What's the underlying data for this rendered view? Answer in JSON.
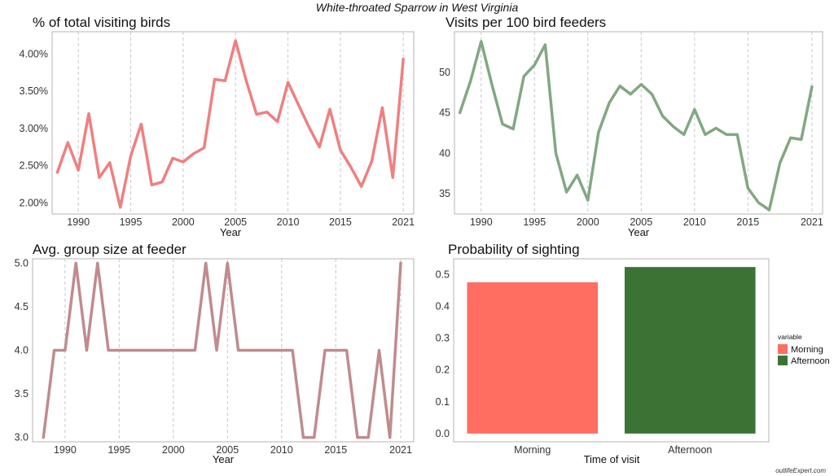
{
  "figure_title": "White-throated Sparrow in West Virginia",
  "credit": "outlifeExpert.com",
  "colors": {
    "panel1": "#EF8080",
    "panel2": "#82A882",
    "panel3": "#C08B8E",
    "morning": "#FF6E61",
    "afternoon": "#3B7334"
  },
  "chart_data": [
    {
      "type": "line",
      "title": "% of total visiting birds",
      "xlabel": "Year",
      "ylabel": "",
      "x": [
        1988,
        1989,
        1990,
        1991,
        1992,
        1993,
        1994,
        1995,
        1996,
        1997,
        1998,
        1999,
        2000,
        2001,
        2002,
        2003,
        2004,
        2005,
        2006,
        2007,
        2008,
        2009,
        2010,
        2011,
        2012,
        2013,
        2014,
        2015,
        2016,
        2017,
        2018,
        2019,
        2020,
        2021
      ],
      "series": [
        {
          "values": [
            2.41,
            2.81,
            2.44,
            3.2,
            2.34,
            2.54,
            1.94,
            2.63,
            3.06,
            2.24,
            2.28,
            2.6,
            2.55,
            2.66,
            2.74,
            3.66,
            3.64,
            4.18,
            3.65,
            3.19,
            3.22,
            3.09,
            3.62,
            3.32,
            3.02,
            2.75,
            3.26,
            2.71,
            2.48,
            2.22,
            2.56,
            3.28,
            2.34,
            3.93
          ]
        }
      ],
      "xlim": [
        1987.5,
        2022
      ],
      "ylim": [
        1.85,
        4.3
      ],
      "xticks": [
        1990,
        1995,
        2000,
        2005,
        2010,
        2015,
        2021
      ],
      "yticks": [
        2.0,
        2.5,
        3.0,
        3.5,
        4.0
      ],
      "ytick_labels": [
        "2.00%",
        "2.50%",
        "3.00%",
        "3.50%",
        "4.00%"
      ],
      "grid": "vertical dashed"
    },
    {
      "type": "line",
      "title": "Visits per 100 bird feeders",
      "xlabel": "Year",
      "ylabel": "",
      "x": [
        1988,
        1989,
        1990,
        1991,
        1992,
        1993,
        1994,
        1995,
        1996,
        1997,
        1998,
        1999,
        2000,
        2001,
        2002,
        2003,
        2004,
        2005,
        2006,
        2007,
        2008,
        2009,
        2010,
        2011,
        2012,
        2013,
        2014,
        2015,
        2016,
        2017,
        2018,
        2019,
        2020,
        2021
      ],
      "series": [
        {
          "values": [
            45.0,
            48.9,
            53.8,
            48.5,
            43.6,
            43.0,
            49.5,
            50.9,
            53.4,
            40.0,
            35.2,
            37.3,
            34.2,
            42.6,
            46.2,
            48.3,
            47.3,
            48.5,
            47.3,
            44.6,
            43.3,
            42.3,
            45.4,
            42.3,
            43.1,
            42.3,
            42.3,
            35.7,
            33.9,
            33.0,
            38.8,
            41.9,
            41.7,
            48.2
          ]
        }
      ],
      "xlim": [
        1987.5,
        2022
      ],
      "ylim": [
        32.5,
        55.0
      ],
      "xticks": [
        1990,
        1995,
        2000,
        2005,
        2010,
        2015,
        2021
      ],
      "yticks": [
        35,
        40,
        45,
        50
      ],
      "ytick_labels": [
        "35",
        "40",
        "45",
        "50"
      ],
      "grid": "vertical dashed"
    },
    {
      "type": "line",
      "title": "Avg. group size at feeder",
      "xlabel": "Year",
      "ylabel": "",
      "x": [
        1988,
        1989,
        1990,
        1991,
        1992,
        1993,
        1994,
        1995,
        1996,
        1997,
        1998,
        1999,
        2000,
        2001,
        2002,
        2003,
        2004,
        2005,
        2006,
        2007,
        2008,
        2009,
        2010,
        2011,
        2012,
        2013,
        2014,
        2015,
        2016,
        2017,
        2018,
        2019,
        2020,
        2021
      ],
      "series": [
        {
          "values": [
            3,
            4,
            4,
            5,
            4,
            5,
            4,
            4,
            4,
            4,
            4,
            4,
            4,
            4,
            4,
            5,
            4,
            5,
            4,
            4,
            4,
            4,
            4,
            4,
            3,
            3,
            4,
            4,
            4,
            3,
            3,
            4,
            3,
            5
          ]
        }
      ],
      "xlim": [
        1987,
        2022.2
      ],
      "ylim": [
        2.95,
        5.05
      ],
      "xticks": [
        1990,
        1995,
        2000,
        2005,
        2010,
        2015,
        2021
      ],
      "yticks": [
        3.0,
        3.5,
        4.0,
        4.5,
        5.0
      ],
      "ytick_labels": [
        "3.0",
        "3.5",
        "4.0",
        "4.5",
        "5.0"
      ],
      "grid": "vertical dashed"
    },
    {
      "type": "bar",
      "title": "Probability of sighting",
      "xlabel": "Time of visit",
      "ylabel": "",
      "categories": [
        "Morning",
        "Afternoon"
      ],
      "values": [
        0.476,
        0.524
      ],
      "ylim": [
        -0.026,
        0.55
      ],
      "yticks": [
        0.0,
        0.1,
        0.2,
        0.3,
        0.4,
        0.5
      ],
      "ytick_labels": [
        "0.0",
        "0.1",
        "0.2",
        "0.3",
        "0.4",
        "0.5"
      ],
      "legend": {
        "title": "variable",
        "entries": [
          "Morning",
          "Afternoon"
        ],
        "position": "right"
      }
    }
  ]
}
